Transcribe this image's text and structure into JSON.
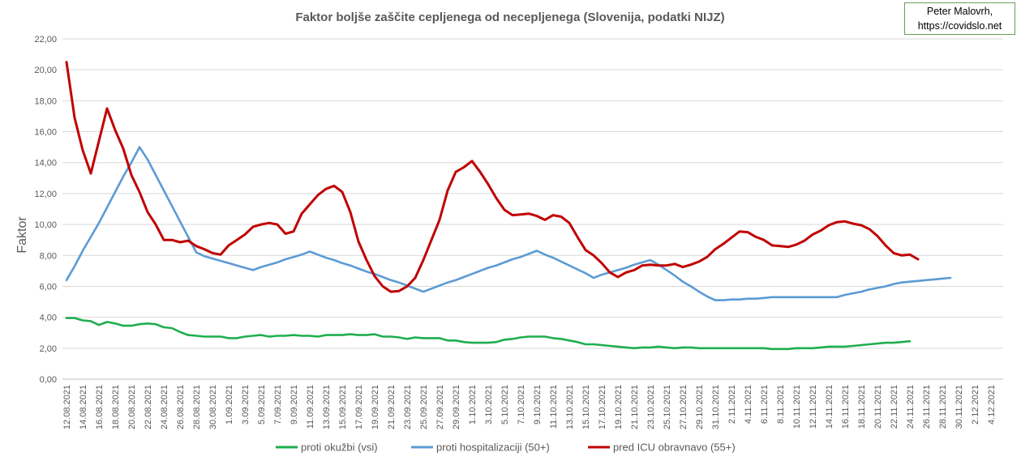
{
  "credit": {
    "line1": "Peter Malovrh,",
    "line2": "https://covidslo.net"
  },
  "chart_data": {
    "type": "line",
    "title": "Faktor boljše zaščite cepljenega od necepljenega (Slovenija, podatki NIJZ)",
    "xlabel": "",
    "ylabel": "Faktor",
    "ylim": [
      0,
      22
    ],
    "yticks": [
      "0,00",
      "2,00",
      "4,00",
      "6,00",
      "8,00",
      "10,00",
      "12,00",
      "14,00",
      "16,00",
      "18,00",
      "20,00",
      "22,00"
    ],
    "grid": "horizontal",
    "legend": "bottom",
    "x_start": "2021-08-12",
    "x_end": "2021-12-05",
    "xticks": [
      "12.08.2021",
      "14.08.2021",
      "16.08.2021",
      "18.08.2021",
      "20.08.2021",
      "22.08.2021",
      "24.08.2021",
      "26.08.2021",
      "28.08.2021",
      "30.08.2021",
      "1.09.2021",
      "3.09.2021",
      "5.09.2021",
      "7.09.2021",
      "9.09.2021",
      "11.09.2021",
      "13.09.2021",
      "15.09.2021",
      "17.09.2021",
      "19.09.2021",
      "21.09.2021",
      "23.09.2021",
      "25.09.2021",
      "27.09.2021",
      "29.09.2021",
      "1.10.2021",
      "3.10.2021",
      "5.10.2021",
      "7.10.2021",
      "9.10.2021",
      "11.10.2021",
      "13.10.2021",
      "15.10.2021",
      "17.10.2021",
      "19.10.2021",
      "21.10.2021",
      "23.10.2021",
      "25.10.2021",
      "27.10.2021",
      "29.10.2021",
      "31.10.2021",
      "2.11.2021",
      "4.11.2021",
      "6.11.2021",
      "8.11.2021",
      "10.11.2021",
      "12.11.2021",
      "14.11.2021",
      "16.11.2021",
      "18.11.2021",
      "20.11.2021",
      "22.11.2021",
      "24.11.2021",
      "26.11.2021",
      "28.11.2021",
      "30.11.2021",
      "2.12.2021",
      "4.12.2021"
    ],
    "series": [
      {
        "name": "proti okužbi (vsi)",
        "color": "#1fae4f",
        "values": [
          3.95,
          3.95,
          3.8,
          3.75,
          3.5,
          3.7,
          3.6,
          3.45,
          3.45,
          3.55,
          3.6,
          3.55,
          3.35,
          3.3,
          3.05,
          2.85,
          2.8,
          2.75,
          2.75,
          2.75,
          2.65,
          2.65,
          2.75,
          2.8,
          2.85,
          2.75,
          2.8,
          2.8,
          2.85,
          2.8,
          2.8,
          2.75,
          2.85,
          2.85,
          2.85,
          2.9,
          2.85,
          2.85,
          2.9,
          2.75,
          2.75,
          2.7,
          2.6,
          2.7,
          2.65,
          2.65,
          2.65,
          2.5,
          2.5,
          2.4,
          2.35,
          2.35,
          2.35,
          2.4,
          2.55,
          2.6,
          2.7,
          2.75,
          2.75,
          2.75,
          2.65,
          2.6,
          2.5,
          2.4,
          2.25,
          2.25,
          2.2,
          2.15,
          2.1,
          2.05,
          2.0,
          2.05,
          2.05,
          2.1,
          2.05,
          2.0,
          2.05,
          2.05,
          2.0,
          2.0,
          2.0,
          2.0,
          2.0,
          2.0,
          2.0,
          2.0,
          2.0,
          1.95,
          1.95,
          1.95,
          2.0,
          2.0,
          2.0,
          2.05,
          2.1,
          2.1,
          2.1,
          2.15,
          2.2,
          2.25,
          2.3,
          2.35,
          2.35,
          2.4,
          2.45
        ]
      },
      {
        "name": "proti hospitalizaciji (50+)",
        "color": "#5b9bd5",
        "values": [
          6.4,
          7.3,
          8.3,
          9.2,
          10.1,
          11.1,
          12.1,
          13.1,
          14.0,
          15.0,
          14.2,
          13.2,
          12.2,
          11.2,
          10.2,
          9.2,
          8.2,
          7.95,
          7.8,
          7.65,
          7.5,
          7.35,
          7.2,
          7.05,
          7.25,
          7.4,
          7.55,
          7.75,
          7.9,
          8.05,
          8.25,
          8.05,
          7.85,
          7.7,
          7.5,
          7.35,
          7.15,
          6.95,
          6.8,
          6.6,
          6.4,
          6.25,
          6.05,
          5.85,
          5.65,
          5.85,
          6.05,
          6.25,
          6.4,
          6.6,
          6.8,
          7.0,
          7.2,
          7.35,
          7.55,
          7.75,
          7.9,
          8.1,
          8.3,
          8.05,
          7.85,
          7.6,
          7.35,
          7.1,
          6.85,
          6.55,
          6.75,
          6.9,
          7.05,
          7.2,
          7.4,
          7.55,
          7.7,
          7.4,
          7.05,
          6.7,
          6.3,
          6.0,
          5.65,
          5.35,
          5.1,
          5.1,
          5.15,
          5.15,
          5.2,
          5.2,
          5.25,
          5.3,
          5.3,
          5.3,
          5.3,
          5.3,
          5.3,
          5.3,
          5.3,
          5.3,
          5.45,
          5.55,
          5.65,
          5.8,
          5.9,
          6.0,
          6.15,
          6.25,
          6.3,
          6.35,
          6.4,
          6.45,
          6.5,
          6.55
        ]
      },
      {
        "name": "pred ICU obravnavo (55+)",
        "color": "#c00000",
        "values": [
          20.5,
          16.9,
          14.8,
          13.3,
          15.4,
          17.5,
          16.1,
          14.9,
          13.2,
          12.1,
          10.8,
          10.0,
          9.0,
          9.0,
          8.85,
          8.95,
          8.6,
          8.4,
          8.15,
          8.05,
          8.65,
          9.0,
          9.35,
          9.85,
          10.0,
          10.1,
          10.0,
          9.4,
          9.55,
          10.7,
          11.3,
          11.9,
          12.3,
          12.5,
          12.1,
          10.8,
          8.9,
          7.7,
          6.65,
          6.0,
          5.65,
          5.7,
          6.0,
          6.55,
          7.7,
          9.0,
          10.3,
          12.2,
          13.4,
          13.7,
          14.1,
          13.4,
          12.6,
          11.7,
          10.95,
          10.6,
          10.65,
          10.7,
          10.55,
          10.3,
          10.6,
          10.5,
          10.1,
          9.2,
          8.35,
          8.0,
          7.5,
          6.9,
          6.6,
          6.9,
          7.05,
          7.35,
          7.4,
          7.35,
          7.35,
          7.45,
          7.25,
          7.4,
          7.6,
          7.9,
          8.4,
          8.75,
          9.15,
          9.55,
          9.5,
          9.2,
          9.0,
          8.65,
          8.6,
          8.55,
          8.7,
          8.95,
          9.35,
          9.6,
          9.95,
          10.15,
          10.2,
          10.05,
          9.95,
          9.7,
          9.25,
          8.65,
          8.15,
          8.0,
          8.05,
          7.75
        ]
      }
    ]
  }
}
